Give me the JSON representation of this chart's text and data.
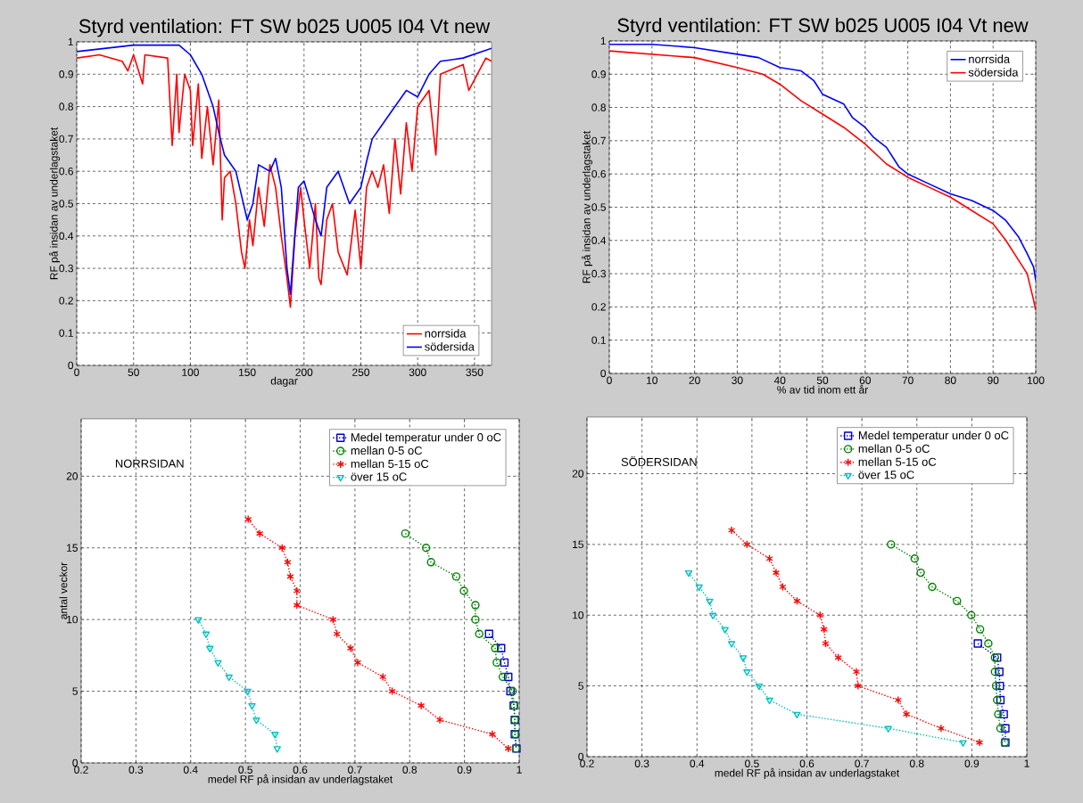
{
  "chart_data": [
    {
      "type": "line",
      "title": "Styrd ventilation: FT SW b025 U005 I04 Vt new",
      "xlabel": "dagar",
      "ylabel": "RF på insidan av underlagstaket",
      "xlim": [
        0,
        365
      ],
      "ylim": [
        0,
        1
      ],
      "xticks": [
        0,
        50,
        100,
        150,
        200,
        250,
        300,
        350
      ],
      "yticks": [
        0,
        0.1,
        0.2,
        0.3,
        0.4,
        0.5,
        0.6,
        0.7,
        0.8,
        0.9,
        1
      ],
      "grid": true,
      "legend": "bottom right",
      "line_style": "solid",
      "marker": "none",
      "series": [
        {
          "name": "norrsida",
          "color": "#ff0000",
          "x": [
            0,
            20,
            40,
            45,
            50,
            58,
            60,
            80,
            84,
            88,
            90,
            95,
            100,
            102,
            107,
            110,
            115,
            120,
            125,
            128,
            130,
            135,
            140,
            145,
            148,
            152,
            155,
            160,
            165,
            170,
            175,
            180,
            185,
            188,
            192,
            197,
            200,
            205,
            210,
            213,
            215,
            220,
            225,
            230,
            238,
            245,
            250,
            255,
            260,
            265,
            270,
            275,
            280,
            285,
            290,
            295,
            300,
            310,
            316,
            320,
            340,
            345,
            360,
            365
          ],
          "values": [
            0.95,
            0.96,
            0.94,
            0.91,
            0.96,
            0.87,
            0.96,
            0.95,
            0.68,
            0.9,
            0.72,
            0.9,
            0.85,
            0.68,
            0.87,
            0.64,
            0.8,
            0.62,
            0.82,
            0.45,
            0.58,
            0.6,
            0.5,
            0.35,
            0.3,
            0.45,
            0.37,
            0.55,
            0.43,
            0.62,
            0.55,
            0.4,
            0.27,
            0.18,
            0.4,
            0.55,
            0.45,
            0.3,
            0.5,
            0.27,
            0.25,
            0.45,
            0.5,
            0.35,
            0.28,
            0.48,
            0.3,
            0.55,
            0.6,
            0.55,
            0.62,
            0.47,
            0.7,
            0.53,
            0.75,
            0.6,
            0.8,
            0.85,
            0.65,
            0.9,
            0.93,
            0.85,
            0.95,
            0.94
          ]
        },
        {
          "name": "södersida",
          "color": "#0000ff",
          "x": [
            0,
            50,
            90,
            100,
            110,
            120,
            125,
            130,
            140,
            150,
            155,
            160,
            170,
            175,
            180,
            185,
            188,
            195,
            200,
            210,
            215,
            220,
            230,
            240,
            250,
            255,
            260,
            270,
            280,
            290,
            300,
            310,
            320,
            340,
            365
          ],
          "values": [
            0.97,
            0.99,
            0.99,
            0.96,
            0.9,
            0.8,
            0.72,
            0.65,
            0.6,
            0.45,
            0.5,
            0.62,
            0.6,
            0.64,
            0.55,
            0.3,
            0.22,
            0.55,
            0.57,
            0.45,
            0.4,
            0.55,
            0.6,
            0.5,
            0.55,
            0.63,
            0.7,
            0.75,
            0.8,
            0.85,
            0.83,
            0.9,
            0.94,
            0.95,
            0.98
          ]
        }
      ]
    },
    {
      "type": "line",
      "title": "Styrd ventilation: FT SW b025 U005 I04 Vt new",
      "xlabel": "% av tid inom ett år",
      "ylabel": "RF på insidan av underlagstaket",
      "xlim": [
        0,
        100
      ],
      "ylim": [
        0,
        1
      ],
      "xticks": [
        0,
        10,
        20,
        30,
        40,
        50,
        60,
        70,
        80,
        90,
        100
      ],
      "yticks": [
        0,
        0.1,
        0.2,
        0.3,
        0.4,
        0.5,
        0.6,
        0.7,
        0.8,
        0.9,
        1
      ],
      "grid": true,
      "legend": "top right",
      "line_style": "solid",
      "marker": "none",
      "series": [
        {
          "name": "norrsida",
          "color": "#0000ff",
          "x": [
            0,
            10,
            20,
            30,
            35,
            40,
            45,
            48,
            50,
            55,
            57,
            60,
            62,
            65,
            68,
            70,
            75,
            80,
            85,
            90,
            93,
            96,
            98,
            99.5,
            100
          ],
          "values": [
            0.99,
            0.99,
            0.98,
            0.96,
            0.95,
            0.92,
            0.91,
            0.88,
            0.84,
            0.81,
            0.77,
            0.74,
            0.71,
            0.68,
            0.62,
            0.6,
            0.57,
            0.54,
            0.52,
            0.49,
            0.46,
            0.41,
            0.36,
            0.32,
            0.28
          ]
        },
        {
          "name": "södersida",
          "color": "#ff0000",
          "x": [
            0,
            10,
            20,
            30,
            36,
            40,
            45,
            50,
            55,
            60,
            65,
            70,
            75,
            80,
            85,
            90,
            93,
            96,
            98,
            99.5,
            100
          ],
          "values": [
            0.97,
            0.96,
            0.95,
            0.92,
            0.9,
            0.87,
            0.82,
            0.78,
            0.74,
            0.69,
            0.63,
            0.59,
            0.56,
            0.53,
            0.49,
            0.45,
            0.4,
            0.34,
            0.3,
            0.22,
            0.19
          ]
        }
      ]
    },
    {
      "type": "line",
      "xlabel": "medel RF på insidan av underlagstaket",
      "ylabel": "antal veckor",
      "xlim": [
        0.2,
        1
      ],
      "ylim": [
        0,
        24
      ],
      "xticks": [
        0.2,
        0.3,
        0.4,
        0.5,
        0.6,
        0.7,
        0.8,
        0.9,
        1
      ],
      "yticks": [
        0,
        5,
        10,
        15,
        20
      ],
      "grid": true,
      "legend": "top right",
      "line_style": "dotted",
      "annotations": [
        "NORRSIDAN"
      ],
      "series": [
        {
          "name": "Medel temperatur under 0 oC",
          "color": "#0000cc",
          "marker": "square",
          "x": [
            0.945,
            0.967,
            0.973,
            0.98,
            0.984,
            0.99,
            0.992,
            0.992,
            0.995
          ],
          "values": [
            9,
            8,
            7,
            6,
            5,
            4,
            3,
            2,
            1
          ]
        },
        {
          "name": "mellan 0-5 oC",
          "color": "#008000",
          "marker": "circle",
          "x": [
            0.792,
            0.83,
            0.839,
            0.885,
            0.899,
            0.92,
            0.92,
            0.927,
            0.956,
            0.959,
            0.97,
            0.988,
            0.991,
            0.992,
            0.993,
            0.994
          ],
          "values": [
            16,
            15,
            14,
            13,
            12,
            11,
            10,
            9,
            8,
            7,
            6,
            5,
            4,
            3,
            2,
            1
          ]
        },
        {
          "name": "mellan 5-15 oC",
          "color": "#ff0000",
          "marker": "cross",
          "x": [
            0.505,
            0.526,
            0.567,
            0.577,
            0.582,
            0.594,
            0.594,
            0.66,
            0.667,
            0.692,
            0.705,
            0.751,
            0.768,
            0.821,
            0.855,
            0.951,
            0.98
          ],
          "values": [
            17,
            16,
            15,
            14,
            13,
            12,
            11,
            10,
            9,
            8,
            7,
            6,
            5,
            4,
            3,
            2,
            1
          ]
        },
        {
          "name": "över 15 oC",
          "color": "#00bfbf",
          "marker": "triangle",
          "x": [
            0.414,
            0.428,
            0.435,
            0.45,
            0.47,
            0.504,
            0.512,
            0.52,
            0.554,
            0.558
          ],
          "values": [
            10,
            9,
            8,
            7,
            6,
            5,
            4,
            3,
            2,
            1
          ]
        }
      ]
    },
    {
      "type": "line",
      "xlabel": "medel RF på insidan av underlagstaket",
      "xlim": [
        0.2,
        1
      ],
      "ylim": [
        0,
        24
      ],
      "xticks": [
        0.2,
        0.3,
        0.4,
        0.5,
        0.6,
        0.7,
        0.8,
        0.9,
        1
      ],
      "yticks": [
        0,
        5,
        10,
        15,
        20
      ],
      "grid": true,
      "legend": "top right",
      "line_style": "dotted",
      "annotations": [
        "SÖDERSIDAN"
      ],
      "series": [
        {
          "name": "Medel temperatur under 0 oC",
          "color": "#0000cc",
          "marker": "square",
          "x": [
            0.911,
            0.946,
            0.95,
            0.951,
            0.952,
            0.958,
            0.961,
            0.961
          ],
          "values": [
            8,
            7,
            6,
            5,
            4,
            3,
            2,
            1
          ]
        },
        {
          "name": "mellan 0-5 oC",
          "color": "#008000",
          "marker": "circle",
          "x": [
            0.753,
            0.796,
            0.807,
            0.828,
            0.873,
            0.899,
            0.915,
            0.93,
            0.942,
            0.942,
            0.944,
            0.946,
            0.948,
            0.952,
            0.96
          ],
          "values": [
            15,
            14,
            13,
            12,
            11,
            10,
            9,
            8,
            7,
            6,
            5,
            4,
            3,
            2,
            1
          ]
        },
        {
          "name": "mellan 5-15 oC",
          "color": "#ff0000",
          "marker": "cross",
          "x": [
            0.463,
            0.491,
            0.532,
            0.544,
            0.556,
            0.582,
            0.624,
            0.631,
            0.634,
            0.657,
            0.69,
            0.693,
            0.766,
            0.781,
            0.844,
            0.914
          ],
          "values": [
            16,
            15,
            14,
            13,
            12,
            11,
            10,
            9,
            8,
            7,
            6,
            5,
            4,
            3,
            2,
            1
          ]
        },
        {
          "name": "över 15 oC",
          "color": "#00bfbf",
          "marker": "triangle",
          "x": [
            0.385,
            0.404,
            0.423,
            0.429,
            0.451,
            0.463,
            0.484,
            0.491,
            0.513,
            0.532,
            0.582,
            0.748,
            0.884
          ],
          "values": [
            13,
            12,
            11,
            10,
            9,
            8,
            7,
            6,
            5,
            4,
            3,
            2,
            1
          ]
        }
      ]
    }
  ]
}
